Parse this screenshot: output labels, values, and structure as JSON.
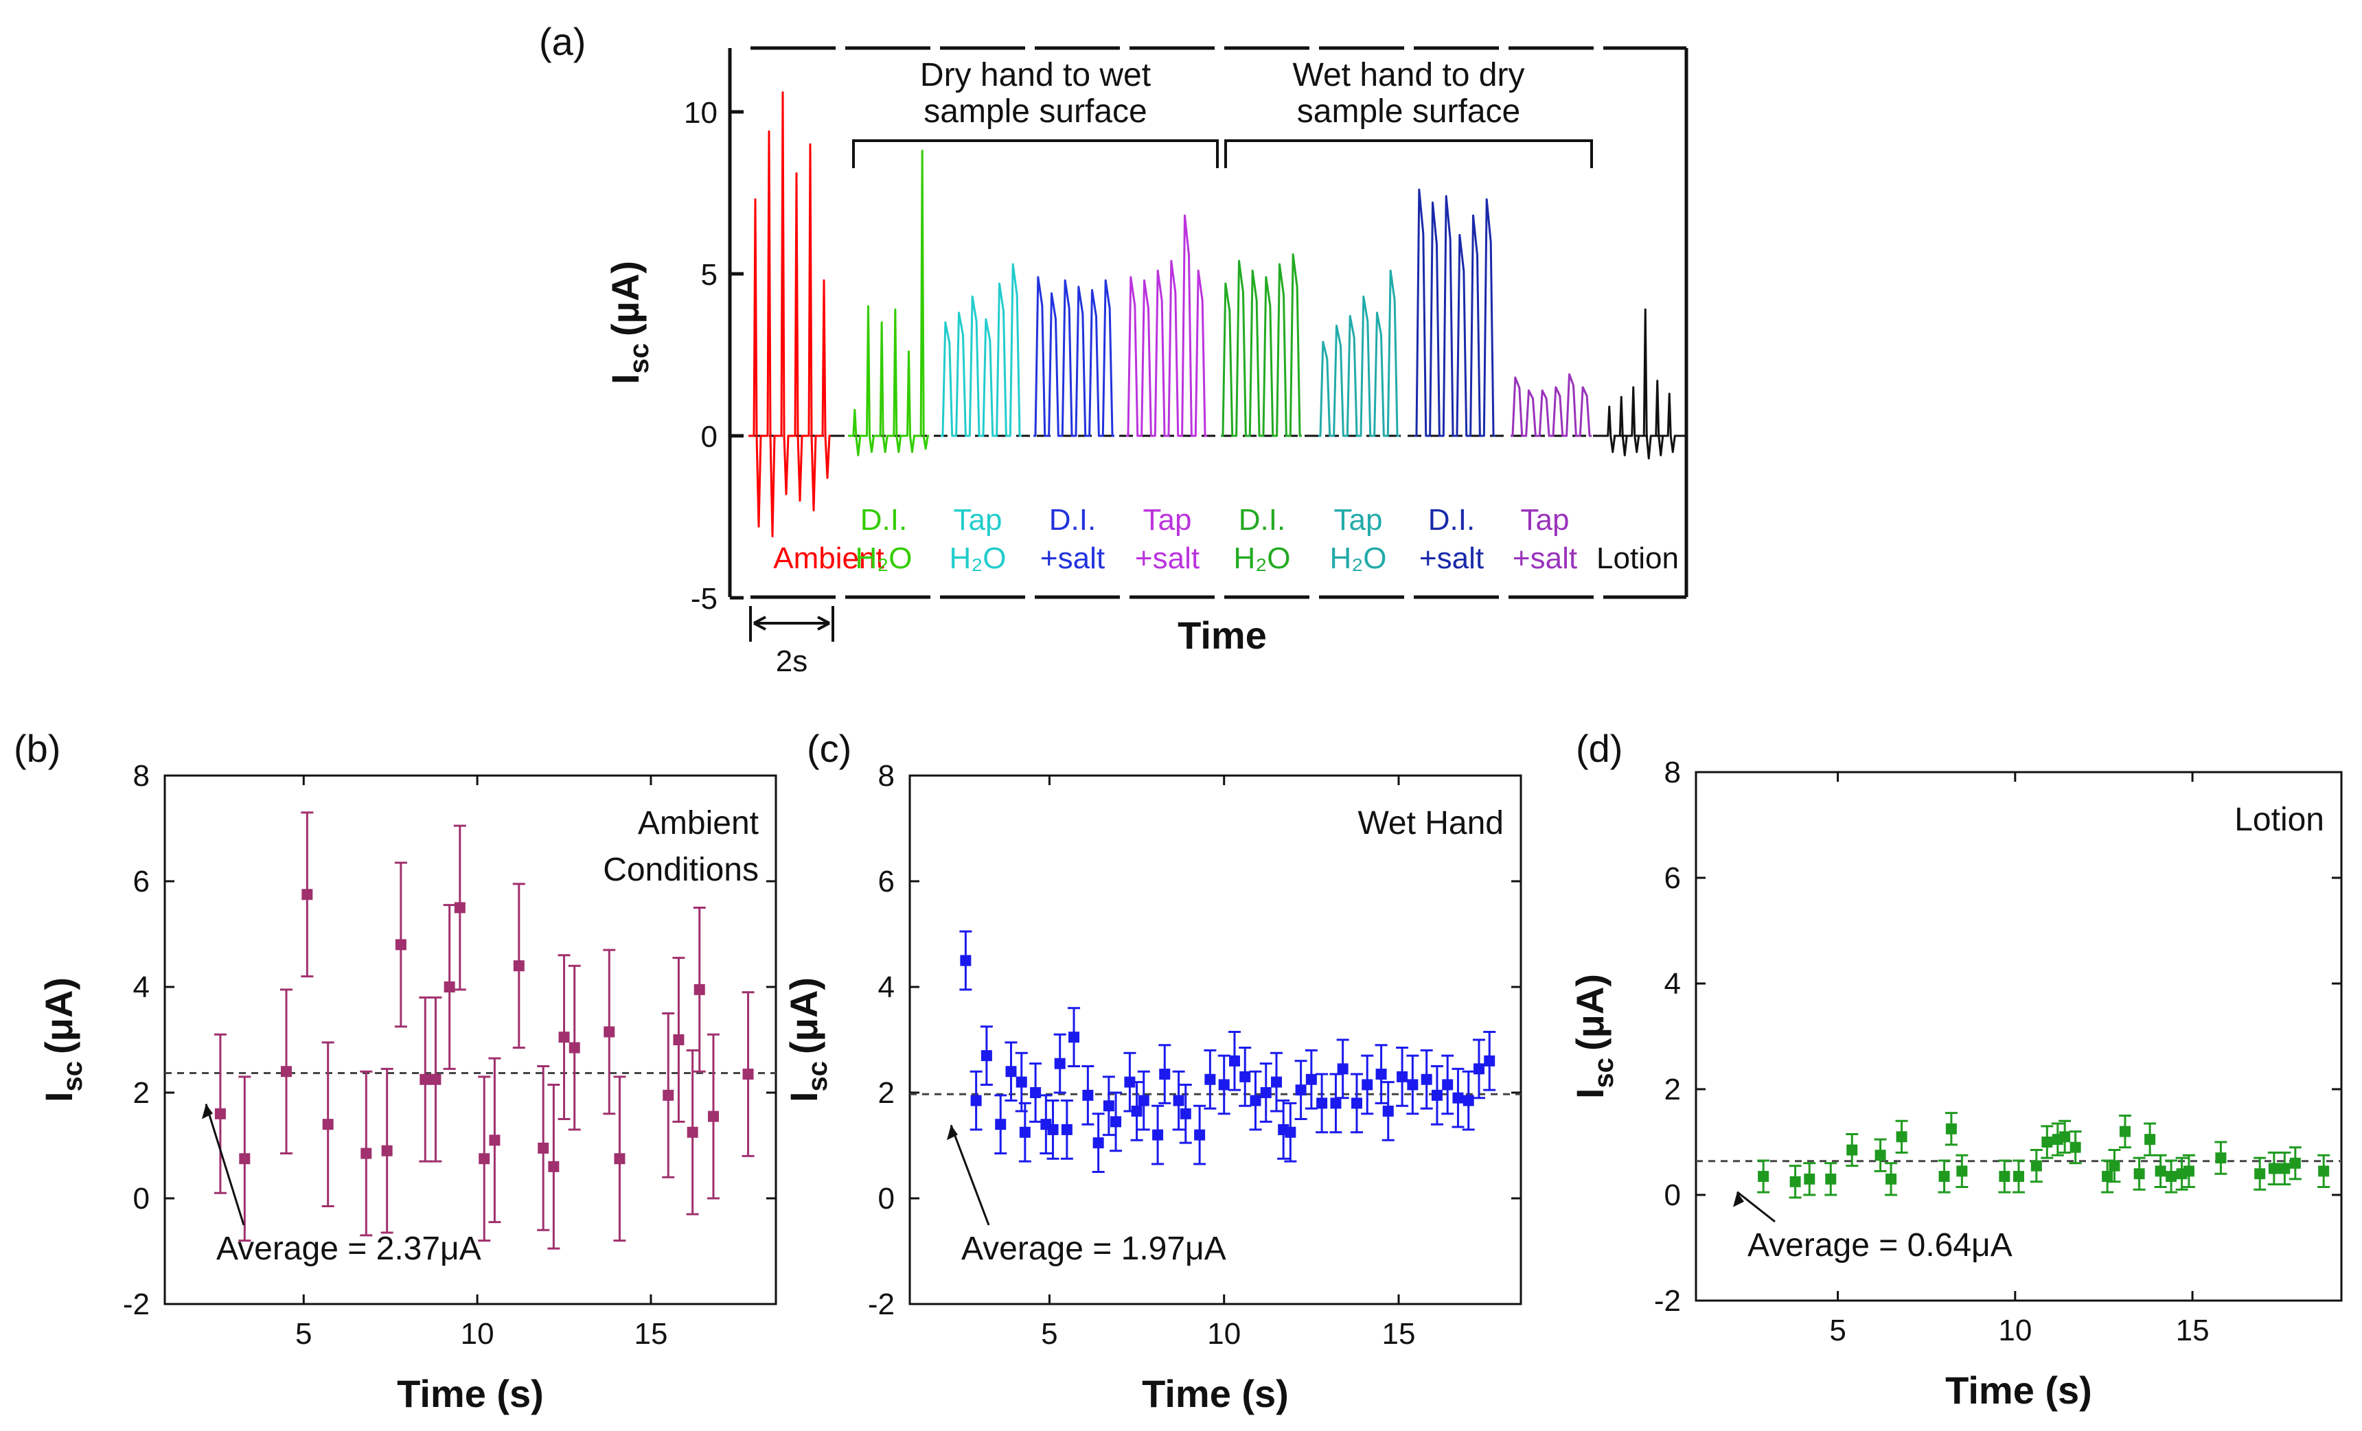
{
  "colors": {
    "ambient": "#ff0000",
    "di_dry": "#33cc00",
    "tap_dry": "#22cccc",
    "disalt_dry": "#2233dd",
    "tapsalt_dry": "#bb33dd",
    "di_wet": "#22aa22",
    "tap_wet": "#22aaaa",
    "disalt_wet": "#1a2aaa",
    "tapsalt_wet": "#9933bb",
    "lotion": "#111111",
    "panel_b": "#a0306e",
    "panel_c": "#1a1aee",
    "panel_d": "#1f9a1f"
  },
  "chart_data": [
    {
      "type": "line",
      "panel": "(a)",
      "ylabel": "I",
      "ylabel_sub": "sc",
      "ylabel_unit": "(µA)",
      "xlabel": "Time",
      "ylim": [
        -5,
        12
      ],
      "yticks": [
        "-5",
        "0",
        "5",
        "10"
      ],
      "ytick_values": [
        -5,
        0,
        5,
        10
      ],
      "scale_bar": "2s",
      "brackets": [
        {
          "line1": "Dry hand to wet",
          "line2": "sample surface"
        },
        {
          "line1": "Wet hand to dry",
          "line2": "sample surface"
        }
      ],
      "series": [
        {
          "label1": "",
          "label2": "Ambient",
          "color_key": "ambient",
          "peaks": [
            7.3,
            9.4,
            10.6,
            8.1,
            9.0,
            4.8
          ],
          "neg": [
            -2.8,
            -3.1,
            -1.8,
            -2.0,
            -2.3,
            -1.3
          ]
        },
        {
          "label1": "D.I.",
          "label2": "H₂O",
          "color_key": "di_dry",
          "peaks": [
            0.8,
            4.0,
            3.5,
            3.9,
            2.6,
            8.8
          ],
          "neg": [
            -0.6,
            -0.5,
            -0.5,
            -0.5,
            -0.5,
            -0.4
          ]
        },
        {
          "label1": "Tap",
          "label2": "H₂O",
          "color_key": "tap_dry",
          "peaks": [
            3.5,
            3.8,
            4.3,
            3.6,
            4.7,
            5.3
          ],
          "neg": []
        },
        {
          "label1": "D.I.",
          "label2": "+salt",
          "color_key": "disalt_dry",
          "peaks": [
            4.9,
            4.4,
            4.8,
            4.6,
            4.5,
            4.8
          ],
          "neg": []
        },
        {
          "label1": "Tap",
          "label2": "+salt",
          "color_key": "tapsalt_dry",
          "peaks": [
            4.9,
            4.8,
            5.1,
            5.4,
            6.8,
            5.1
          ],
          "neg": []
        },
        {
          "label1": "D.I.",
          "label2": "H₂O",
          "color_key": "di_wet",
          "peaks": [
            4.7,
            5.4,
            5.1,
            4.9,
            5.3,
            5.6
          ],
          "neg": []
        },
        {
          "label1": "Tap",
          "label2": "H₂O",
          "color_key": "tap_wet",
          "peaks": [
            2.9,
            3.4,
            3.7,
            4.3,
            3.8,
            5.1
          ],
          "neg": []
        },
        {
          "label1": "D.I.",
          "label2": "+salt",
          "color_key": "disalt_wet",
          "peaks": [
            7.6,
            7.2,
            7.4,
            6.2,
            6.8,
            7.3
          ],
          "neg": []
        },
        {
          "label1": "Tap",
          "label2": "+salt",
          "color_key": "tapsalt_wet",
          "peaks": [
            1.8,
            1.4,
            1.4,
            1.5,
            1.9,
            1.5
          ],
          "neg": []
        },
        {
          "label1": "",
          "label2": "Lotion",
          "color_key": "lotion",
          "peaks": [
            0.9,
            1.2,
            1.5,
            3.9,
            1.7,
            1.3
          ],
          "neg": [
            -0.5,
            -0.6,
            -0.5,
            -0.7,
            -0.6,
            -0.5
          ]
        }
      ]
    },
    {
      "type": "scatter",
      "panel": "(b)",
      "color_key": "panel_b",
      "annotation_lines": [
        "Ambient",
        "Conditions"
      ],
      "average_label": "Average = 2.37μA",
      "average": 2.37,
      "xlabel": "Time (s)",
      "ylabel": "I",
      "ylabel_sub": "sc",
      "ylabel_unit": "(μA)",
      "xlim": [
        1,
        18.6
      ],
      "ylim": [
        -2,
        8
      ],
      "xticks": [
        5,
        10,
        15
      ],
      "yticks": [
        -2,
        0,
        2,
        4,
        6,
        8
      ],
      "points": [
        {
          "x": 2.6,
          "y": 1.6,
          "err": 1.5
        },
        {
          "x": 3.3,
          "y": 0.75,
          "err": 1.55
        },
        {
          "x": 4.5,
          "y": 2.4,
          "err": 1.55
        },
        {
          "x": 5.1,
          "y": 5.75,
          "err": 1.55
        },
        {
          "x": 5.7,
          "y": 1.4,
          "err": 1.55
        },
        {
          "x": 6.8,
          "y": 0.85,
          "err": 1.55
        },
        {
          "x": 7.4,
          "y": 0.9,
          "err": 1.55
        },
        {
          "x": 7.8,
          "y": 4.8,
          "err": 1.55
        },
        {
          "x": 8.5,
          "y": 2.25,
          "err": 1.55
        },
        {
          "x": 8.8,
          "y": 2.25,
          "err": 1.55
        },
        {
          "x": 9.2,
          "y": 4.0,
          "err": 1.55
        },
        {
          "x": 9.5,
          "y": 5.5,
          "err": 1.55
        },
        {
          "x": 10.2,
          "y": 0.75,
          "err": 1.55
        },
        {
          "x": 10.5,
          "y": 1.1,
          "err": 1.55
        },
        {
          "x": 11.2,
          "y": 4.4,
          "err": 1.55
        },
        {
          "x": 11.9,
          "y": 0.95,
          "err": 1.55
        },
        {
          "x": 12.2,
          "y": 0.6,
          "err": 1.55
        },
        {
          "x": 12.5,
          "y": 3.05,
          "err": 1.55
        },
        {
          "x": 12.8,
          "y": 2.85,
          "err": 1.55
        },
        {
          "x": 13.8,
          "y": 3.15,
          "err": 1.55
        },
        {
          "x": 14.1,
          "y": 0.75,
          "err": 1.55
        },
        {
          "x": 15.5,
          "y": 1.95,
          "err": 1.55
        },
        {
          "x": 15.8,
          "y": 3.0,
          "err": 1.55
        },
        {
          "x": 16.2,
          "y": 1.25,
          "err": 1.55
        },
        {
          "x": 16.4,
          "y": 3.95,
          "err": 1.55
        },
        {
          "x": 16.8,
          "y": 1.55,
          "err": 1.55
        },
        {
          "x": 17.8,
          "y": 2.35,
          "err": 1.55
        }
      ]
    },
    {
      "type": "scatter",
      "panel": "(c)",
      "color_key": "panel_c",
      "annotation_lines": [
        "Wet Hand"
      ],
      "average_label": "Average = 1.97μA",
      "average": 1.97,
      "xlabel": "Time (s)",
      "ylabel": "I",
      "ylabel_sub": "sc",
      "ylabel_unit": "(μA)",
      "xlim": [
        1,
        18.5
      ],
      "ylim": [
        -2,
        8
      ],
      "xticks": [
        5,
        10,
        15
      ],
      "yticks": [
        -2,
        0,
        2,
        4,
        6,
        8
      ],
      "points": [
        {
          "x": 2.6,
          "y": 4.5,
          "err": 0.55
        },
        {
          "x": 2.9,
          "y": 1.85,
          "err": 0.55
        },
        {
          "x": 3.2,
          "y": 2.7,
          "err": 0.55
        },
        {
          "x": 3.6,
          "y": 1.4,
          "err": 0.55
        },
        {
          "x": 3.9,
          "y": 2.4,
          "err": 0.55
        },
        {
          "x": 4.2,
          "y": 2.2,
          "err": 0.55
        },
        {
          "x": 4.3,
          "y": 1.25,
          "err": 0.55
        },
        {
          "x": 4.6,
          "y": 2.0,
          "err": 0.55
        },
        {
          "x": 4.9,
          "y": 1.4,
          "err": 0.55
        },
        {
          "x": 5.1,
          "y": 1.3,
          "err": 0.55
        },
        {
          "x": 5.3,
          "y": 2.55,
          "err": 0.55
        },
        {
          "x": 5.5,
          "y": 1.3,
          "err": 0.55
        },
        {
          "x": 5.7,
          "y": 3.05,
          "err": 0.55
        },
        {
          "x": 6.1,
          "y": 1.95,
          "err": 0.55
        },
        {
          "x": 6.4,
          "y": 1.05,
          "err": 0.55
        },
        {
          "x": 6.7,
          "y": 1.75,
          "err": 0.55
        },
        {
          "x": 6.9,
          "y": 1.45,
          "err": 0.55
        },
        {
          "x": 7.3,
          "y": 2.2,
          "err": 0.55
        },
        {
          "x": 7.5,
          "y": 1.65,
          "err": 0.55
        },
        {
          "x": 7.7,
          "y": 1.85,
          "err": 0.55
        },
        {
          "x": 8.1,
          "y": 1.2,
          "err": 0.55
        },
        {
          "x": 8.3,
          "y": 2.35,
          "err": 0.55
        },
        {
          "x": 8.7,
          "y": 1.85,
          "err": 0.55
        },
        {
          "x": 8.9,
          "y": 1.6,
          "err": 0.55
        },
        {
          "x": 9.3,
          "y": 1.2,
          "err": 0.55
        },
        {
          "x": 9.6,
          "y": 2.25,
          "err": 0.55
        },
        {
          "x": 10.0,
          "y": 2.15,
          "err": 0.55
        },
        {
          "x": 10.3,
          "y": 2.6,
          "err": 0.55
        },
        {
          "x": 10.6,
          "y": 2.3,
          "err": 0.55
        },
        {
          "x": 10.9,
          "y": 1.85,
          "err": 0.55
        },
        {
          "x": 11.2,
          "y": 2.0,
          "err": 0.55
        },
        {
          "x": 11.5,
          "y": 2.2,
          "err": 0.55
        },
        {
          "x": 11.7,
          "y": 1.3,
          "err": 0.55
        },
        {
          "x": 11.9,
          "y": 1.25,
          "err": 0.55
        },
        {
          "x": 12.2,
          "y": 2.05,
          "err": 0.55
        },
        {
          "x": 12.5,
          "y": 2.25,
          "err": 0.55
        },
        {
          "x": 12.8,
          "y": 1.8,
          "err": 0.55
        },
        {
          "x": 13.2,
          "y": 1.8,
          "err": 0.55
        },
        {
          "x": 13.4,
          "y": 2.45,
          "err": 0.55
        },
        {
          "x": 13.8,
          "y": 1.8,
          "err": 0.55
        },
        {
          "x": 14.1,
          "y": 2.15,
          "err": 0.55
        },
        {
          "x": 14.5,
          "y": 2.35,
          "err": 0.55
        },
        {
          "x": 14.7,
          "y": 1.65,
          "err": 0.55
        },
        {
          "x": 15.1,
          "y": 2.3,
          "err": 0.55
        },
        {
          "x": 15.4,
          "y": 2.15,
          "err": 0.55
        },
        {
          "x": 15.8,
          "y": 2.25,
          "err": 0.55
        },
        {
          "x": 16.1,
          "y": 1.95,
          "err": 0.55
        },
        {
          "x": 16.4,
          "y": 2.15,
          "err": 0.55
        },
        {
          "x": 16.7,
          "y": 1.9,
          "err": 0.55
        },
        {
          "x": 17.0,
          "y": 1.85,
          "err": 0.55
        },
        {
          "x": 17.3,
          "y": 2.45,
          "err": 0.55
        },
        {
          "x": 17.6,
          "y": 2.6,
          "err": 0.55
        }
      ]
    },
    {
      "type": "scatter",
      "panel": "(d)",
      "color_key": "panel_d",
      "annotation_lines": [
        "Lotion"
      ],
      "average_label": "Average = 0.64μA",
      "average": 0.64,
      "xlabel": "Time (s)",
      "ylabel": "I",
      "ylabel_sub": "sc",
      "ylabel_unit": "(μA)",
      "xlim": [
        1,
        19.2
      ],
      "ylim": [
        -2,
        8
      ],
      "xticks": [
        5,
        10,
        15
      ],
      "yticks": [
        -2,
        0,
        2,
        4,
        6,
        8
      ],
      "points": [
        {
          "x": 2.9,
          "y": 0.35,
          "err": 0.3
        },
        {
          "x": 3.8,
          "y": 0.25,
          "err": 0.3
        },
        {
          "x": 4.2,
          "y": 0.3,
          "err": 0.3
        },
        {
          "x": 4.8,
          "y": 0.3,
          "err": 0.3
        },
        {
          "x": 5.4,
          "y": 0.85,
          "err": 0.3
        },
        {
          "x": 6.2,
          "y": 0.75,
          "err": 0.3
        },
        {
          "x": 6.5,
          "y": 0.3,
          "err": 0.3
        },
        {
          "x": 6.8,
          "y": 1.1,
          "err": 0.3
        },
        {
          "x": 8.0,
          "y": 0.35,
          "err": 0.3
        },
        {
          "x": 8.2,
          "y": 1.25,
          "err": 0.3
        },
        {
          "x": 8.5,
          "y": 0.45,
          "err": 0.3
        },
        {
          "x": 9.7,
          "y": 0.35,
          "err": 0.3
        },
        {
          "x": 10.1,
          "y": 0.35,
          "err": 0.3
        },
        {
          "x": 10.6,
          "y": 0.55,
          "err": 0.3
        },
        {
          "x": 10.9,
          "y": 1.0,
          "err": 0.3
        },
        {
          "x": 11.2,
          "y": 1.05,
          "err": 0.3
        },
        {
          "x": 11.4,
          "y": 1.1,
          "err": 0.3
        },
        {
          "x": 11.7,
          "y": 0.9,
          "err": 0.3
        },
        {
          "x": 12.6,
          "y": 0.35,
          "err": 0.3
        },
        {
          "x": 12.8,
          "y": 0.55,
          "err": 0.3
        },
        {
          "x": 13.1,
          "y": 1.2,
          "err": 0.3
        },
        {
          "x": 13.5,
          "y": 0.4,
          "err": 0.3
        },
        {
          "x": 13.8,
          "y": 1.05,
          "err": 0.3
        },
        {
          "x": 14.1,
          "y": 0.45,
          "err": 0.3
        },
        {
          "x": 14.4,
          "y": 0.35,
          "err": 0.3
        },
        {
          "x": 14.7,
          "y": 0.4,
          "err": 0.3
        },
        {
          "x": 14.9,
          "y": 0.45,
          "err": 0.3
        },
        {
          "x": 15.8,
          "y": 0.7,
          "err": 0.3
        },
        {
          "x": 16.9,
          "y": 0.4,
          "err": 0.3
        },
        {
          "x": 17.3,
          "y": 0.5,
          "err": 0.3
        },
        {
          "x": 17.6,
          "y": 0.5,
          "err": 0.3
        },
        {
          "x": 17.9,
          "y": 0.6,
          "err": 0.3
        },
        {
          "x": 18.7,
          "y": 0.45,
          "err": 0.3
        }
      ]
    }
  ]
}
